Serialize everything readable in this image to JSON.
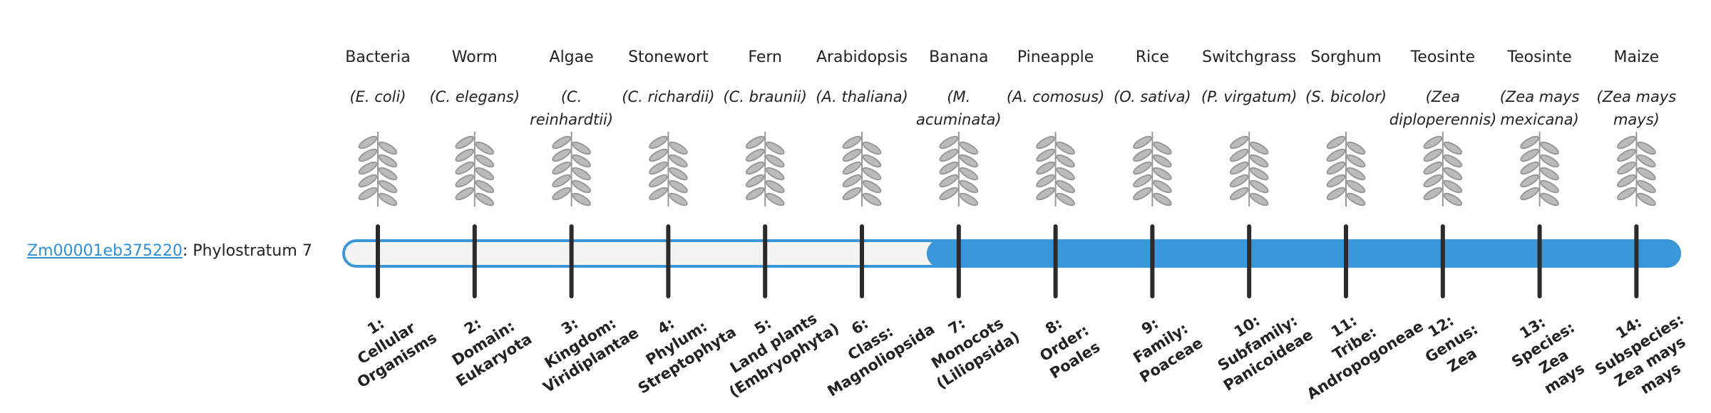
{
  "gene_id": "Zm00001eb375220",
  "gene_suffix": ": Phylostratum",
  "phylostratum": 7,
  "organisms": [
    {
      "name": "Bacteria",
      "scientific": "(E. coli)",
      "stratum": [
        "1:",
        "Cellular",
        "Organisms"
      ]
    },
    {
      "name": "Worm",
      "scientific": "(C. elegans)",
      "stratum": [
        "2:",
        "Domain:",
        "Eukaryota"
      ]
    },
    {
      "name": "Algae",
      "scientific": "(C. reinhardtii)",
      "stratum": [
        "3:",
        "Kingdom:",
        "Viridiplantae"
      ]
    },
    {
      "name": "Stonewort",
      "scientific": "(C. richardii)",
      "stratum": [
        "4:",
        "Phylum:",
        "Streptophyta"
      ]
    },
    {
      "name": "Fern",
      "scientific": "(C. braunii)",
      "stratum": [
        "5:",
        "Land plants",
        "(Embryophyta)"
      ]
    },
    {
      "name": "Arabidopsis",
      "scientific": "(A. thaliana)",
      "stratum": [
        "6:",
        "Class:",
        "Magnoliopsida"
      ]
    },
    {
      "name": "Banana",
      "scientific": "(M. acuminata)",
      "stratum": [
        "7:",
        "Monocots",
        "(Liliopsida)"
      ]
    },
    {
      "name": "Pineapple",
      "scientific": "(A. comosus)",
      "stratum": [
        "8:",
        "Order:",
        "Poales"
      ]
    },
    {
      "name": "Rice",
      "scientific": "(O. sativa)",
      "stratum": [
        "9:",
        "Family:",
        "Poaceae"
      ]
    },
    {
      "name": "Switchgrass",
      "scientific": "(P. virgatum)",
      "stratum": [
        "10:",
        "Subfamily:",
        "Panicoideae"
      ]
    },
    {
      "name": "Sorghum",
      "scientific": "(S. bicolor)",
      "stratum": [
        "11:",
        "Tribe:",
        "Andropogoneae"
      ]
    },
    {
      "name": "Teosinte",
      "scientific": "(Zea diploperennis)",
      "stratum": [
        "12:",
        "Genus:",
        "Zea"
      ]
    },
    {
      "name": "Teosinte",
      "scientific": "(Zea mays mexicana)",
      "stratum": [
        "13:",
        "Species:",
        "Zea",
        "mays"
      ]
    },
    {
      "name": "Maize",
      "scientific": "(Zea mays mays)",
      "stratum": [
        "14:",
        "Subspecies:",
        "Zea mays",
        "mays"
      ]
    }
  ]
}
